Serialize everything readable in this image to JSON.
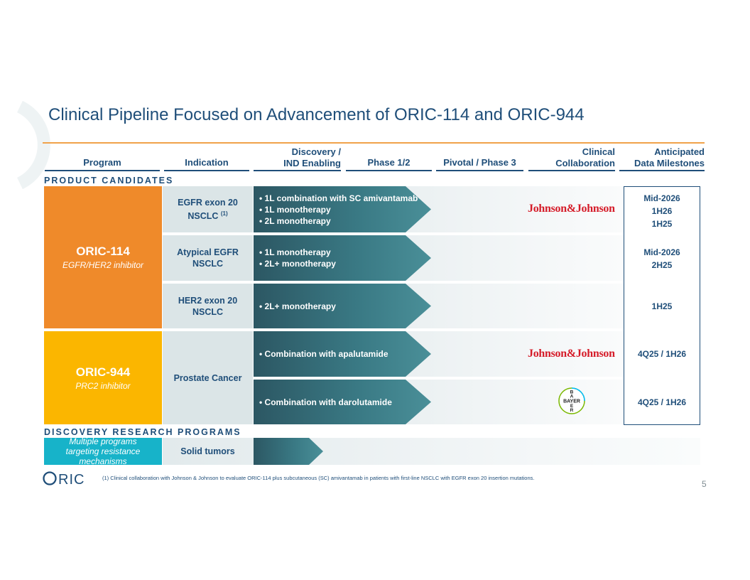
{
  "title": "Clinical Pipeline Focused on Advancement of ORIC-114 and ORIC-944",
  "columns": {
    "program": "Program",
    "indication": "Indication",
    "discovery_line1": "Discovery /",
    "discovery_line2": "IND Enabling",
    "phase12": "Phase 1/2",
    "pivotal": "Pivotal / Phase 3",
    "collab_line1": "Clinical",
    "collab_line2": "Collaboration",
    "mile_line1": "Anticipated",
    "mile_line2": "Data Milestones"
  },
  "sections": {
    "product_candidates": "PRODUCT CANDIDATES",
    "discovery_programs": "DISCOVERY RESEARCH PROGRAMS"
  },
  "programs": [
    {
      "name": "ORIC-114",
      "subtitle": "EGFR/HER2 inhibitor",
      "color": "#ef8a2a"
    },
    {
      "name": "ORIC-944",
      "subtitle": "PRC2 inhibitor",
      "color": "#fbb600"
    }
  ],
  "rows": [
    {
      "indication": "EGFR exon 20\nNSCLC",
      "footnote_ref": "(1)",
      "bullets": [
        "• 1L combination with SC amivantamab",
        "• 1L monotherapy",
        "• 2L monotherapy"
      ],
      "collaboration": "Johnson&Johnson",
      "milestones": [
        "Mid-2026",
        "1H26",
        "1H25"
      ]
    },
    {
      "indication": "Atypical EGFR\nNSCLC",
      "bullets": [
        "• 1L monotherapy",
        "• 2L+ monotherapy"
      ],
      "milestones": [
        "Mid-2026",
        "2H25"
      ]
    },
    {
      "indication": "HER2 exon 20\nNSCLC",
      "bullets": [
        "• 2L+ monotherapy"
      ],
      "milestones": [
        "1H25"
      ]
    },
    {
      "bullets": [
        "• Combination with apalutamide"
      ],
      "collaboration": "Johnson&Johnson",
      "milestones": [
        "4Q25 / 1H26"
      ]
    },
    {
      "bullets": [
        "• Combination with darolutamide"
      ],
      "collaboration_logo": "bayer-logo",
      "milestones": [
        "4Q25 / 1H26"
      ]
    }
  ],
  "prostate_indication": "Prostate Cancer",
  "bayer_letters": {
    "vertical": [
      "B",
      "A",
      "Y",
      "E",
      "R"
    ],
    "horizontal": "BAYER"
  },
  "discovery_row": {
    "program": "Multiple programs targeting resistance mechanisms",
    "indication": "Solid tumors",
    "color": "#17b3c9"
  },
  "footnote": "(1)  Clinical collaboration with Johnson & Johnson to evaluate ORIC-114 plus subcutaneous (SC) amivantamab in patients with first-line NSCLC with EGFR exon 20 insertion mutations.",
  "logo": "ORIC",
  "page_number": "5",
  "colors": {
    "navy": "#1f4e79",
    "orange": "#ef8a2a",
    "yellow": "#fbb600",
    "teal": "#17b3c9",
    "arrow": "#3a7a85",
    "jj_red": "#d51c29"
  }
}
